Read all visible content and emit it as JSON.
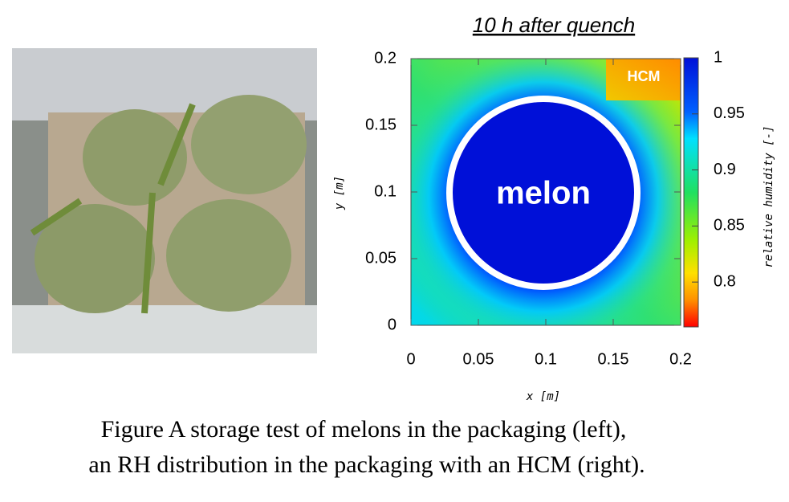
{
  "chart_data": {
    "type": "heatmap",
    "title": "10 h after quench",
    "x_label": "x [m]",
    "y_label": "y [m]",
    "xlim": [
      0,
      0.2
    ],
    "ylim": [
      0,
      0.2
    ],
    "xticks": [
      0,
      0.05,
      0.1,
      0.15,
      0.2
    ],
    "yticks": [
      0,
      0.05,
      0.1,
      0.15,
      0.2
    ],
    "colorbar_label": "relative humidity [-]",
    "clim": [
      0.76,
      1
    ],
    "cticks": [
      0.8,
      0.85,
      0.9,
      0.95,
      1
    ],
    "annotations": [
      "melon",
      "HCM"
    ]
  },
  "caption": [
    "Figure A storage test of melons in the packaging (left),",
    "an RH distribution in the packaging with an HCM (right)."
  ]
}
